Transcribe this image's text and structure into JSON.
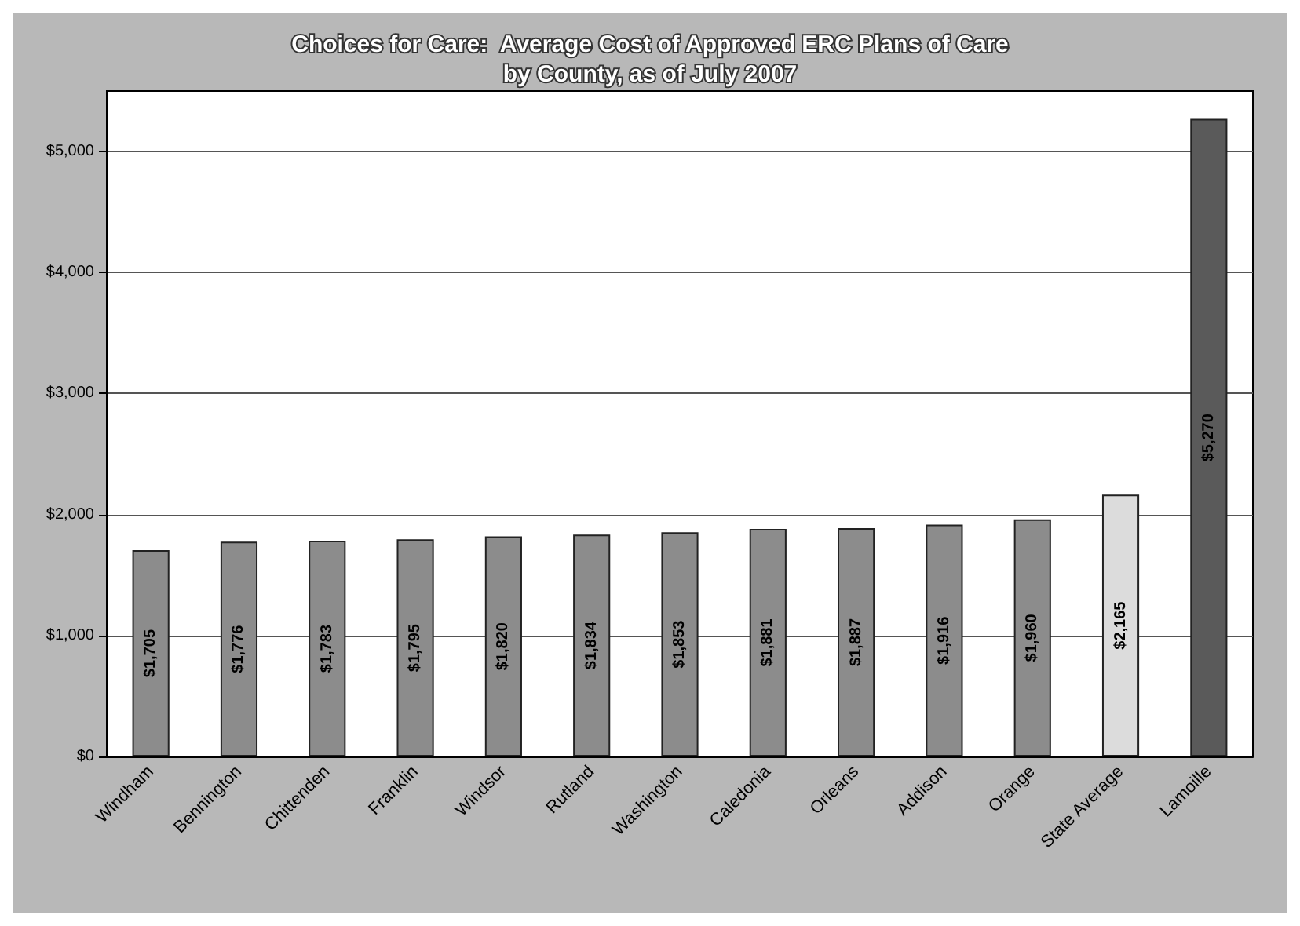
{
  "chart_data": {
    "type": "bar",
    "title": "Choices for Care:  Average Cost of Approved ERC Plans of Care\nby County, as of July 2007",
    "categories": [
      "Windham",
      "Bennington",
      "Chittenden",
      "Franklin",
      "Windsor",
      "Rutland",
      "Washington",
      "Caledonia",
      "Orleans",
      "Addison",
      "Orange",
      "State Average",
      "Lamoille"
    ],
    "values": [
      1705,
      1776,
      1783,
      1795,
      1820,
      1834,
      1853,
      1881,
      1887,
      1916,
      1960,
      2165,
      5270
    ],
    "value_labels": [
      "$1,705",
      "$1,776",
      "$1,783",
      "$1,795",
      "$1,820",
      "$1,834",
      "$1,853",
      "$1,881",
      "$1,887",
      "$1,916",
      "$1,960",
      "$2,165",
      "$5,270"
    ],
    "colors": [
      "#8c8c8c",
      "#8c8c8c",
      "#8c8c8c",
      "#8c8c8c",
      "#8c8c8c",
      "#8c8c8c",
      "#8c8c8c",
      "#8c8c8c",
      "#8c8c8c",
      "#8c8c8c",
      "#8c8c8c",
      "#dcdcdc",
      "#5a5a5a"
    ],
    "ylim": [
      0,
      5500
    ],
    "yticks": [
      {
        "value": 0,
        "label": "$0"
      },
      {
        "value": 1000,
        "label": "$1,000"
      },
      {
        "value": 2000,
        "label": "$2,000"
      },
      {
        "value": 3000,
        "label": "$3,000"
      },
      {
        "value": 4000,
        "label": "$4,000"
      },
      {
        "value": 5000,
        "label": "$5,000"
      }
    ],
    "grid": "y"
  }
}
